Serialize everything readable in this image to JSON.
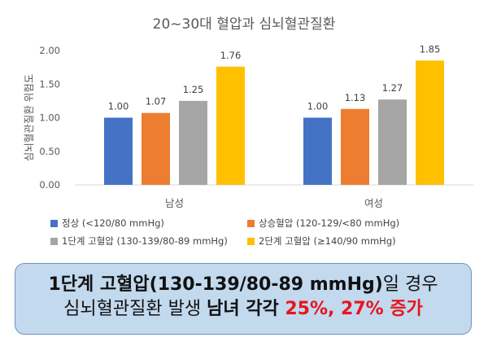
{
  "chart_data": {
    "type": "bar",
    "title": "20~30대 혈압과 심뇌혈관질환",
    "ylabel": "심뇌혈관질환 위험도",
    "xlabel": "",
    "ylim": [
      0,
      2
    ],
    "yticks": [
      "0.00",
      "0.50",
      "1.00",
      "1.50",
      "2.00"
    ],
    "categories": [
      "남성",
      "여성"
    ],
    "series": [
      {
        "name": "정상 (<120/80 mmHg)",
        "color": "#4472c4",
        "values": [
          1.0,
          1.0
        ],
        "labels": [
          "1.00",
          "1.00"
        ]
      },
      {
        "name": "상승혈압 (120-129/<80 mmHg)",
        "color": "#ed7d31",
        "values": [
          1.07,
          1.13
        ],
        "labels": [
          "1.07",
          "1.13"
        ]
      },
      {
        "name": "1단계 고혈압 (130-139/80-89 mmHg)",
        "color": "#a5a5a5",
        "values": [
          1.25,
          1.27
        ],
        "labels": [
          "1.25",
          "1.27"
        ]
      },
      {
        "name": "2단계 고혈압 (≥140/90 mmHg)",
        "color": "#ffc000",
        "values": [
          1.76,
          1.85
        ],
        "labels": [
          "1.76",
          "1.85"
        ]
      }
    ],
    "grid": false,
    "legend": "bottom"
  },
  "callout": {
    "line1_bold": "1단계 고혈압(130-139/80-89 mmHg)",
    "line1_rest": "일 경우",
    "line2_plain": "심뇌혈관질환 발생 ",
    "line2_bold": "남녀 각각 ",
    "line2_red": "25%, 27% 증가"
  }
}
